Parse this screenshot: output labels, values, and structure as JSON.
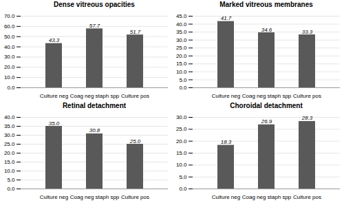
{
  "chart_data": [
    {
      "type": "bar",
      "title": "Dense vitreous opacities",
      "categories": [
        "Culture neg",
        "Coag neg staph spp",
        "Culture pos"
      ],
      "values": [
        43.3,
        57.7,
        51.7
      ],
      "value_labels": [
        "43.3",
        "57.7",
        "51.7"
      ],
      "color": "#595959",
      "ylim": [
        0,
        70.0
      ],
      "yticks": [
        {
          "value": 0.0,
          "label": "0.0"
        },
        {
          "value": 10.0,
          "label": "10.0"
        },
        {
          "value": 20.0,
          "label": "20.0"
        },
        {
          "value": 30.0,
          "label": "30.0"
        },
        {
          "value": 40.0,
          "label": "40.0"
        },
        {
          "value": 50.0,
          "label": "50.0"
        },
        {
          "value": 60.0,
          "label": "60.0"
        },
        {
          "value": 70.0,
          "label": "70.0"
        }
      ],
      "grid": true,
      "data_labels": true
    },
    {
      "type": "bar",
      "title": "Marked vitreous membranes",
      "categories": [
        "Culture neg",
        "Coag neg staph spp",
        "Culture pos"
      ],
      "values": [
        41.7,
        34.6,
        33.3
      ],
      "value_labels": [
        "41.7",
        "34.6",
        "33.3"
      ],
      "color": "#595959",
      "ylim": [
        0,
        45.0
      ],
      "yticks": [
        {
          "value": 0.0,
          "label": "0.0"
        },
        {
          "value": 5.0,
          "label": "5.0"
        },
        {
          "value": 10.0,
          "label": "10.0"
        },
        {
          "value": 15.0,
          "label": "15.0"
        },
        {
          "value": 20.0,
          "label": "20.0"
        },
        {
          "value": 25.0,
          "label": "25.0"
        },
        {
          "value": 30.0,
          "label": "30.0"
        },
        {
          "value": 35.0,
          "label": "35.0"
        },
        {
          "value": 40.0,
          "label": "40.0"
        },
        {
          "value": 45.0,
          "label": "45.0"
        }
      ],
      "grid": true,
      "data_labels": true
    },
    {
      "type": "bar",
      "title": "Retinal detachment",
      "categories": [
        "Culture neg",
        "Coag neg staph spp",
        "Culture pos"
      ],
      "values": [
        35.0,
        30.8,
        25.0
      ],
      "value_labels": [
        "35.0",
        "30.8",
        "25.0"
      ],
      "color": "#595959",
      "ylim": [
        0,
        40.0
      ],
      "yticks": [
        {
          "value": 0.0,
          "label": "0.0"
        },
        {
          "value": 5.0,
          "label": "5.0"
        },
        {
          "value": 10.0,
          "label": "10.0"
        },
        {
          "value": 15.0,
          "label": "15.0"
        },
        {
          "value": 20.0,
          "label": "20.0"
        },
        {
          "value": 25.0,
          "label": "25.0"
        },
        {
          "value": 30.0,
          "label": "30.0"
        },
        {
          "value": 35.0,
          "label": "35.0"
        },
        {
          "value": 40.0,
          "label": "40.0"
        }
      ],
      "grid": true,
      "data_labels": true
    },
    {
      "type": "bar",
      "title": "Choroidal detachment",
      "categories": [
        "Culture neg",
        "Coag neg staph spp",
        "Culture pos"
      ],
      "values": [
        18.3,
        26.9,
        28.3
      ],
      "value_labels": [
        "18.3",
        "26.9",
        "28.3"
      ],
      "color": "#595959",
      "ylim": [
        0,
        30.0
      ],
      "yticks": [
        {
          "value": 0.0,
          "label": "0.0"
        },
        {
          "value": 5.0,
          "label": "5.0"
        },
        {
          "value": 10.0,
          "label": "10.0"
        },
        {
          "value": 15.0,
          "label": "15.0"
        },
        {
          "value": 20.0,
          "label": "20.0"
        },
        {
          "value": 25.0,
          "label": "25.0"
        },
        {
          "value": 30.0,
          "label": "30.0"
        }
      ],
      "grid": true,
      "data_labels": true
    }
  ]
}
